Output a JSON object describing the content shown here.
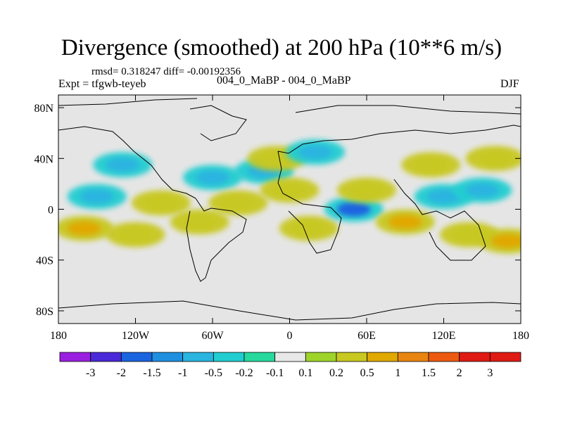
{
  "title": "Divergence (smoothed) at 200 hPa (10**6 m/s)",
  "stats": "rmsd= 0.318247 diff= -0.00192356",
  "experiment": "Expt = tfgwb-teyeb",
  "run_label": "004_0_MaBP - 004_0_MaBP",
  "season": "DJF",
  "chart_data": {
    "type": "contour-map",
    "title": "Divergence (smoothed) at 200 hPa (10**6 m/s)",
    "units": "10**6 m/s",
    "level_hPa": 200,
    "season": "DJF",
    "rmsd": 0.318247,
    "diff": -0.00192356,
    "x_axis": {
      "range": [
        -180,
        180
      ],
      "ticks": [
        -180,
        -120,
        -60,
        0,
        60,
        120,
        180
      ],
      "tick_labels": [
        "180",
        "120W",
        "60W",
        "0",
        "60E",
        "120E",
        "180"
      ]
    },
    "y_axis": {
      "range": [
        -90,
        90
      ],
      "ticks": [
        80,
        40,
        0,
        -40,
        -80
      ],
      "tick_labels": [
        "80N",
        "40N",
        "0",
        "40S",
        "80S"
      ]
    },
    "colorbar": {
      "labels": [
        "-3",
        "-2",
        "-1.5",
        "-1",
        "-0.5",
        "-0.2",
        "-0.1",
        "0.1",
        "0.2",
        "0.5",
        "1",
        "1.5",
        "2",
        "3"
      ],
      "colors": [
        "#9b1fe0",
        "#4a2ad8",
        "#1a64e0",
        "#1f8fe0",
        "#2ab4e0",
        "#21cdd0",
        "#27d89c",
        "#e8e8e8",
        "#9ed42a",
        "#c8c820",
        "#e0a800",
        "#e88510",
        "#ec5a10",
        "#e01a14",
        "#e01a14"
      ]
    },
    "features": [
      {
        "lon": -160,
        "lat": -15,
        "value": 1.0
      },
      {
        "lon": -120,
        "lat": -20,
        "value": 0.5
      },
      {
        "lon": -150,
        "lat": 10,
        "value": -0.5
      },
      {
        "lon": -130,
        "lat": 35,
        "value": -0.5
      },
      {
        "lon": -100,
        "lat": 5,
        "value": 0.5
      },
      {
        "lon": -70,
        "lat": -10,
        "value": 0.5
      },
      {
        "lon": -60,
        "lat": 25,
        "value": -0.5
      },
      {
        "lon": -40,
        "lat": 5,
        "value": 0.5
      },
      {
        "lon": -20,
        "lat": 30,
        "value": -0.5
      },
      {
        "lon": 0,
        "lat": 15,
        "value": 0.5
      },
      {
        "lon": 15,
        "lat": -15,
        "value": 0.5
      },
      {
        "lon": 50,
        "lat": 0,
        "value": -1.5
      },
      {
        "lon": 60,
        "lat": 15,
        "value": 0.5
      },
      {
        "lon": 90,
        "lat": -10,
        "value": 1.0
      },
      {
        "lon": 120,
        "lat": 10,
        "value": -0.5
      },
      {
        "lon": 150,
        "lat": 15,
        "value": -0.5
      },
      {
        "lon": 140,
        "lat": -20,
        "value": 0.5
      },
      {
        "lon": 170,
        "lat": -25,
        "value": 1.0
      },
      {
        "lon": 160,
        "lat": 40,
        "value": 0.5
      },
      {
        "lon": -10,
        "lat": 40,
        "value": 0.5
      },
      {
        "lon": 20,
        "lat": 45,
        "value": -0.5
      },
      {
        "lon": 110,
        "lat": 35,
        "value": 0.5
      }
    ]
  }
}
